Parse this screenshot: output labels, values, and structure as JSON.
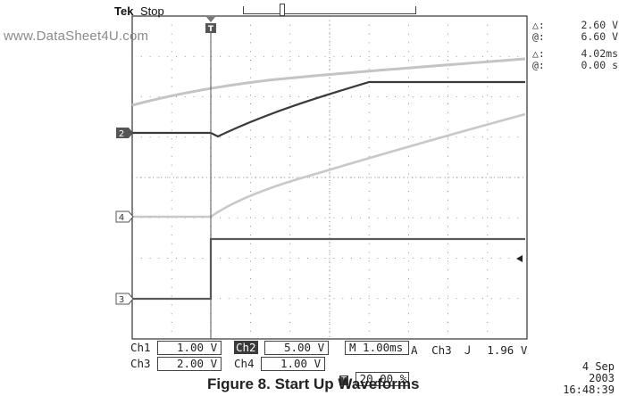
{
  "header": {
    "brand": "Tek",
    "run_state": "Stop",
    "watermark": "www.DataSheet4U.com"
  },
  "cursor_readout": [
    {
      "symbol": "△:",
      "value": "2.60 V"
    },
    {
      "symbol": "@:",
      "value": "6.60 V"
    },
    {
      "symbol": "△:",
      "value": "4.02ms"
    },
    {
      "symbol": "@:",
      "value": "0.00 s"
    }
  ],
  "channel_markers": [
    {
      "label": "2",
      "filled": true
    },
    {
      "label": "4",
      "filled": false
    },
    {
      "label": "3",
      "filled": false
    }
  ],
  "bottom_bar": {
    "ch1": {
      "name": "Ch1",
      "scale": "1.00 V"
    },
    "ch2": {
      "name": "Ch2",
      "scale": "5.00 V"
    },
    "timebase": "M 1.00ms",
    "trigger": {
      "mode": "A",
      "source": "Ch3",
      "slope_symbol": "Ｊ",
      "level": "1.96 V"
    },
    "ch3": {
      "name": "Ch3",
      "scale": "2.00 V"
    },
    "ch4": {
      "name": "Ch4",
      "scale": "1.00 V"
    },
    "trigger_position": "20.00 %"
  },
  "timestamp": {
    "date": "4 Sep 2003",
    "time": "16:48:39"
  },
  "caption": "Figure 8. Start Up Waveforms"
}
